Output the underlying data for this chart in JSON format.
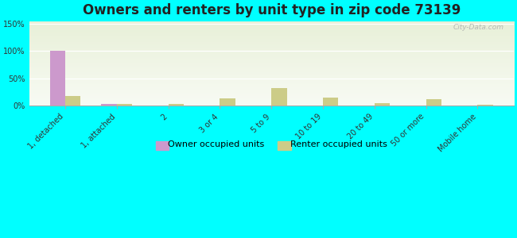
{
  "title": "Owners and renters by unit type in zip code 73139",
  "categories": [
    "1, detached",
    "1, attached",
    "2",
    "3 or 4",
    "5 to 9",
    "10 to 19",
    "20 to 49",
    "50 or more",
    "Mobile home"
  ],
  "owner_values": [
    100,
    2,
    0,
    0,
    0,
    0,
    0,
    0,
    0
  ],
  "renter_values": [
    17,
    3,
    2,
    13,
    32,
    15,
    4,
    12,
    1
  ],
  "owner_color": "#cc99cc",
  "renter_color": "#cccc88",
  "ylim": [
    0,
    155
  ],
  "yticks": [
    0,
    50,
    100,
    150
  ],
  "ytick_labels": [
    "0%",
    "50%",
    "100%",
    "150%"
  ],
  "background_color": "#00ffff",
  "watermark": "City-Data.com",
  "legend_owner": "Owner occupied units",
  "legend_renter": "Renter occupied units",
  "bar_width": 0.3,
  "title_fontsize": 12,
  "tick_fontsize": 7
}
